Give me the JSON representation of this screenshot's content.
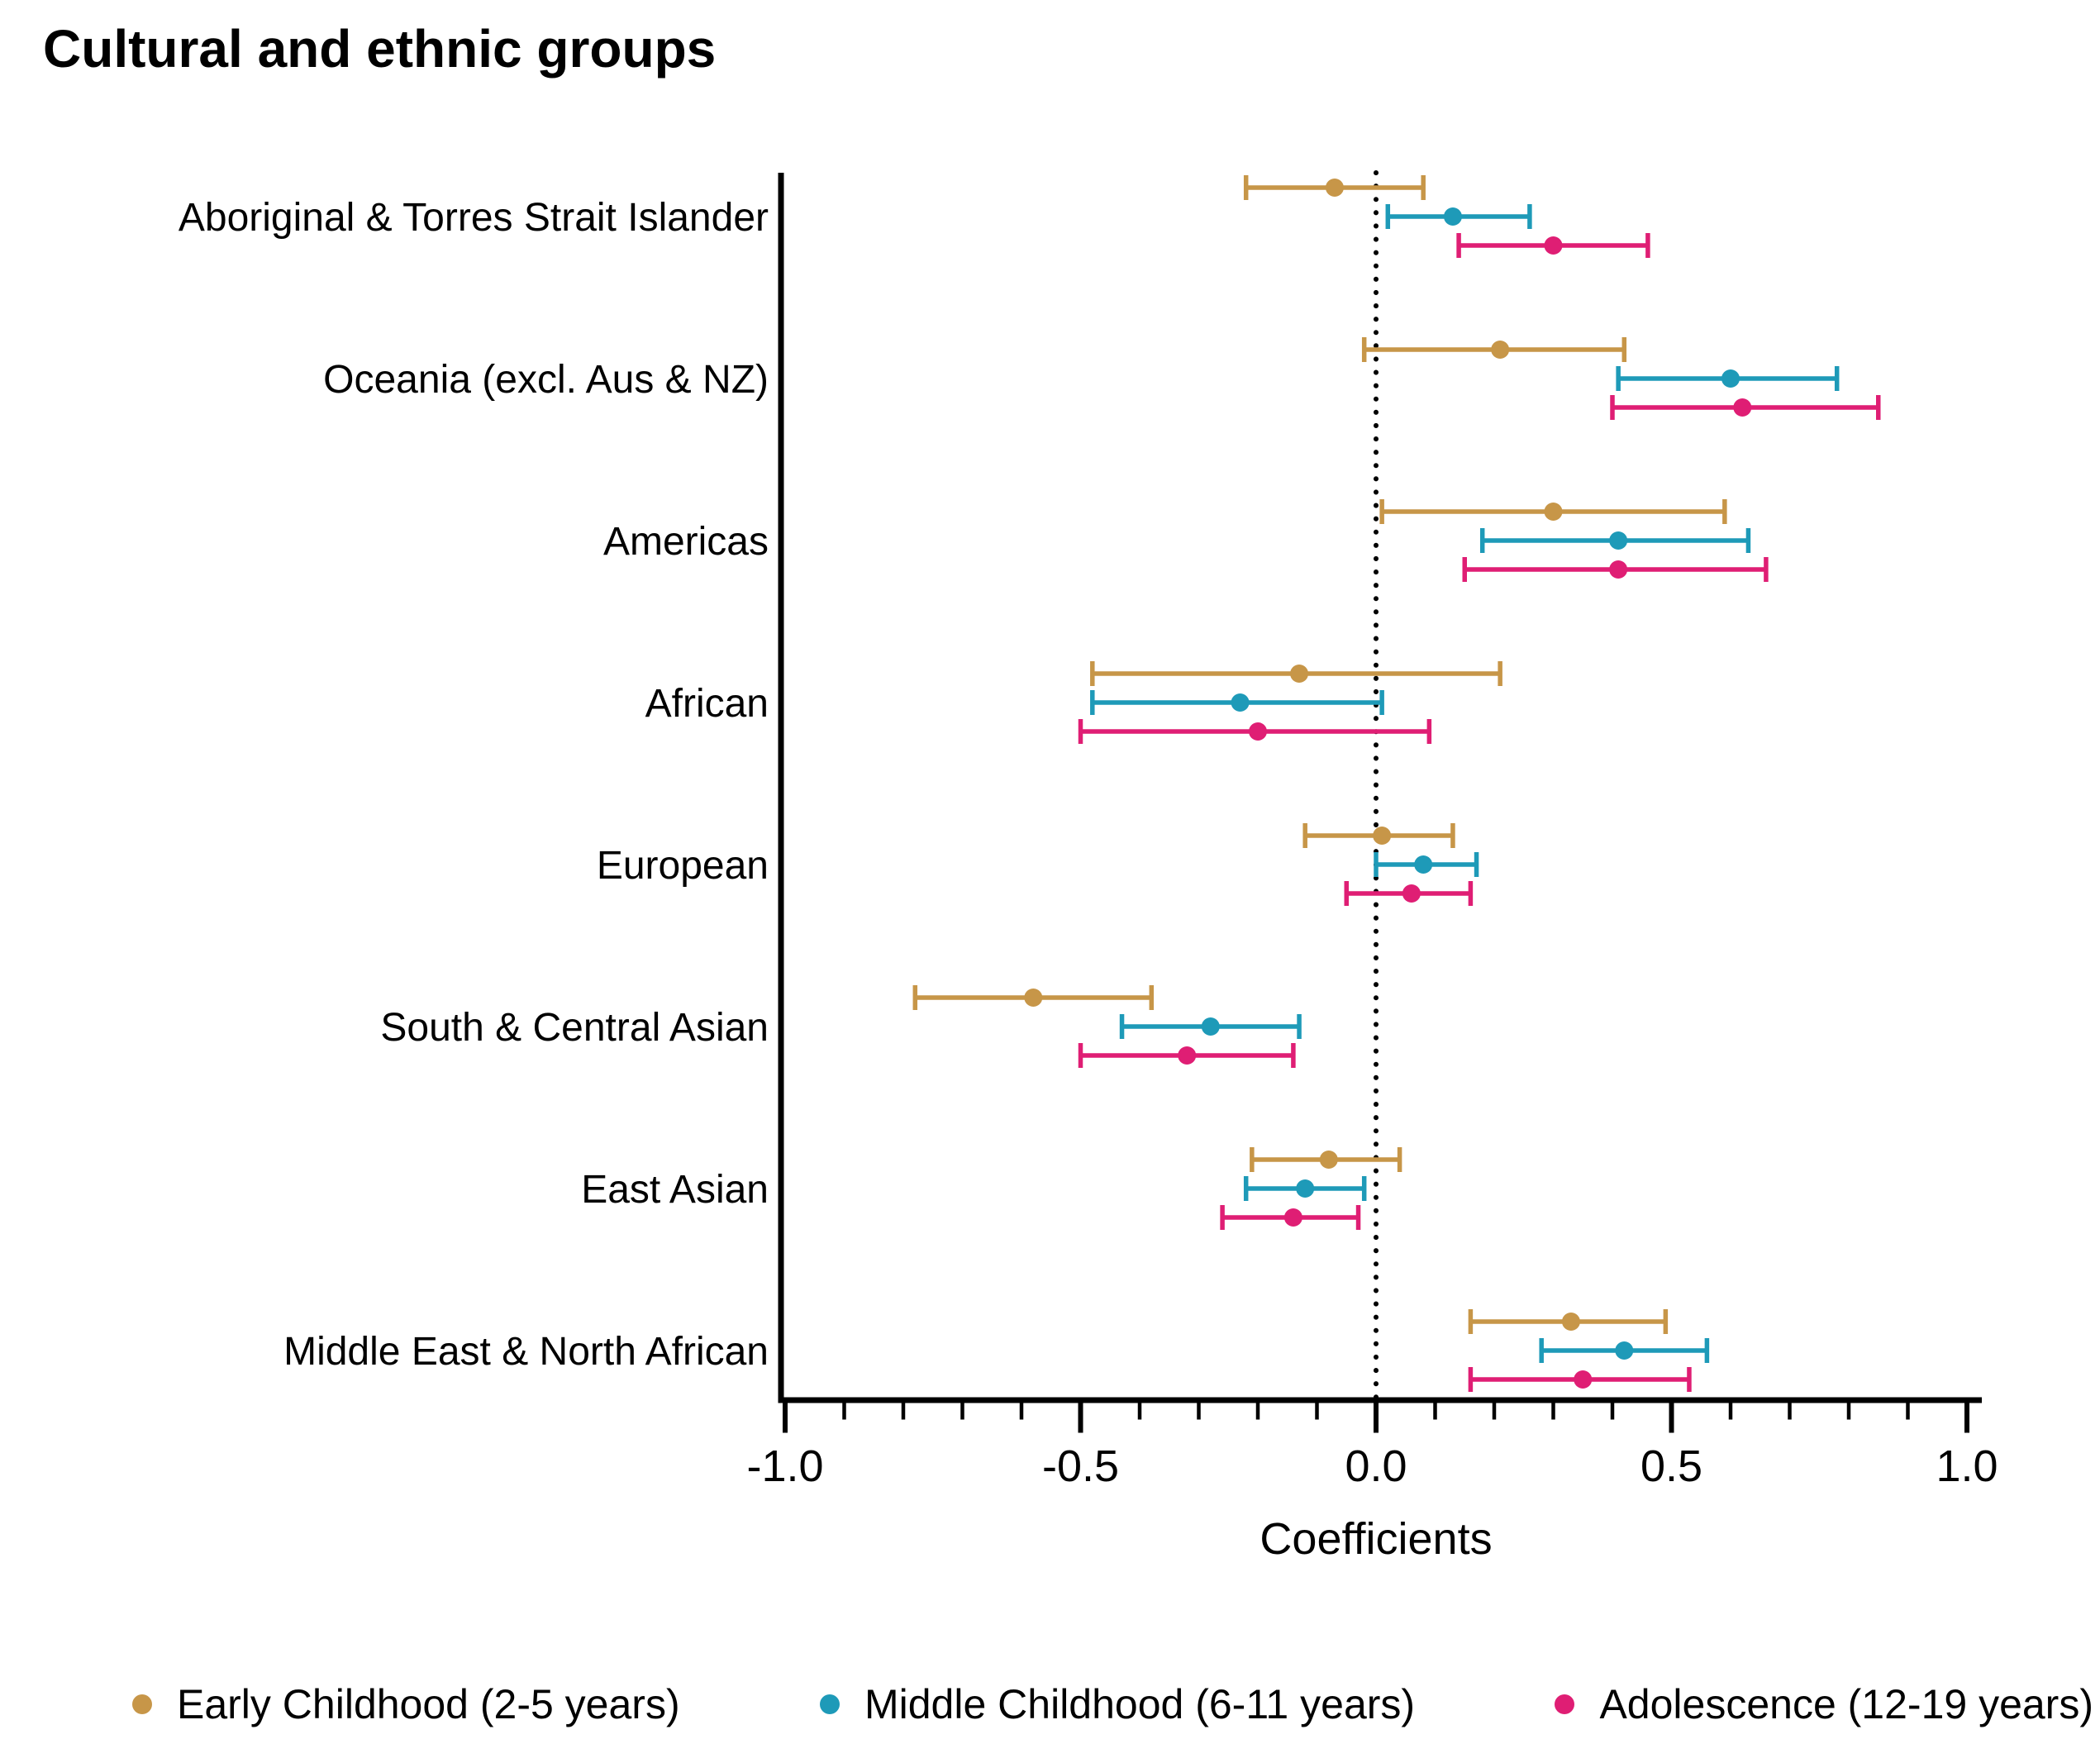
{
  "title": "Cultural and ethnic groups",
  "xlabel": "Coefficients",
  "chart_data": {
    "type": "forest",
    "title": "Cultural and ethnic groups",
    "xlabel": "Coefficients",
    "xlim": [
      -1.0,
      1.0
    ],
    "x_major_ticks": [
      -1.0,
      -0.5,
      0.0,
      0.5,
      1.0
    ],
    "x_tick_labels": [
      "-1.0",
      "-0.5",
      "0.0",
      "0.5",
      "1.0"
    ],
    "x_minor_tick_step": 0.1,
    "reference_line_x": 0.0,
    "grid": "off",
    "legend_position": "bottom",
    "categories": [
      "Aboriginal & Torres Strait Islander",
      "Oceania (excl. Aus & NZ)",
      "Americas",
      "African",
      "European",
      "South & Central Asian",
      "East Asian",
      "Middle East & North African"
    ],
    "series": [
      {
        "name": "Early Childhood (2-5 years)",
        "color": "#C79648",
        "values": [
          {
            "est": -0.07,
            "lo": -0.22,
            "hi": 0.08
          },
          {
            "est": 0.21,
            "lo": -0.02,
            "hi": 0.42
          },
          {
            "est": 0.3,
            "lo": 0.01,
            "hi": 0.59
          },
          {
            "est": -0.13,
            "lo": -0.48,
            "hi": 0.21
          },
          {
            "est": 0.01,
            "lo": -0.12,
            "hi": 0.13
          },
          {
            "est": -0.58,
            "lo": -0.78,
            "hi": -0.38
          },
          {
            "est": -0.08,
            "lo": -0.21,
            "hi": 0.04
          },
          {
            "est": 0.33,
            "lo": 0.16,
            "hi": 0.49
          }
        ]
      },
      {
        "name": "Middle Childhood (6-11 years)",
        "color": "#1E9AB8",
        "values": [
          {
            "est": 0.13,
            "lo": 0.02,
            "hi": 0.26
          },
          {
            "est": 0.6,
            "lo": 0.41,
            "hi": 0.78
          },
          {
            "est": 0.41,
            "lo": 0.18,
            "hi": 0.63
          },
          {
            "est": -0.23,
            "lo": -0.48,
            "hi": 0.01
          },
          {
            "est": 0.08,
            "lo": 0.0,
            "hi": 0.17
          },
          {
            "est": -0.28,
            "lo": -0.43,
            "hi": -0.13
          },
          {
            "est": -0.12,
            "lo": -0.22,
            "hi": -0.02
          },
          {
            "est": 0.42,
            "lo": 0.28,
            "hi": 0.56
          }
        ]
      },
      {
        "name": "Adolescence (12-19 years)",
        "color": "#DF1E74",
        "values": [
          {
            "est": 0.3,
            "lo": 0.14,
            "hi": 0.46
          },
          {
            "est": 0.62,
            "lo": 0.4,
            "hi": 0.85
          },
          {
            "est": 0.41,
            "lo": 0.15,
            "hi": 0.66
          },
          {
            "est": -0.2,
            "lo": -0.5,
            "hi": 0.09
          },
          {
            "est": 0.06,
            "lo": -0.05,
            "hi": 0.16
          },
          {
            "est": -0.32,
            "lo": -0.5,
            "hi": -0.14
          },
          {
            "est": -0.14,
            "lo": -0.26,
            "hi": -0.03
          },
          {
            "est": 0.35,
            "lo": 0.16,
            "hi": 0.53
          }
        ]
      }
    ]
  }
}
